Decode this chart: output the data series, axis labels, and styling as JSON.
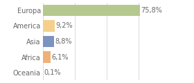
{
  "categories": [
    "Europa",
    "America",
    "Asia",
    "Africa",
    "Oceania"
  ],
  "values": [
    75.8,
    9.2,
    8.8,
    6.1,
    0.1
  ],
  "labels": [
    "75,8%",
    "9,2%",
    "8,8%",
    "6,1%",
    "0,1%"
  ],
  "colors": [
    "#b5c98e",
    "#f5d08c",
    "#7b93c0",
    "#f0b07a",
    "#f5c8b0"
  ],
  "background_color": "#ffffff",
  "xlim": [
    0,
    100
  ],
  "label_fontsize": 7.0,
  "tick_fontsize": 7.0,
  "bar_height": 0.72,
  "grid_xticks": [
    0,
    25,
    50,
    75,
    100
  ],
  "grid_color": "#cccccc",
  "text_color": "#666666"
}
